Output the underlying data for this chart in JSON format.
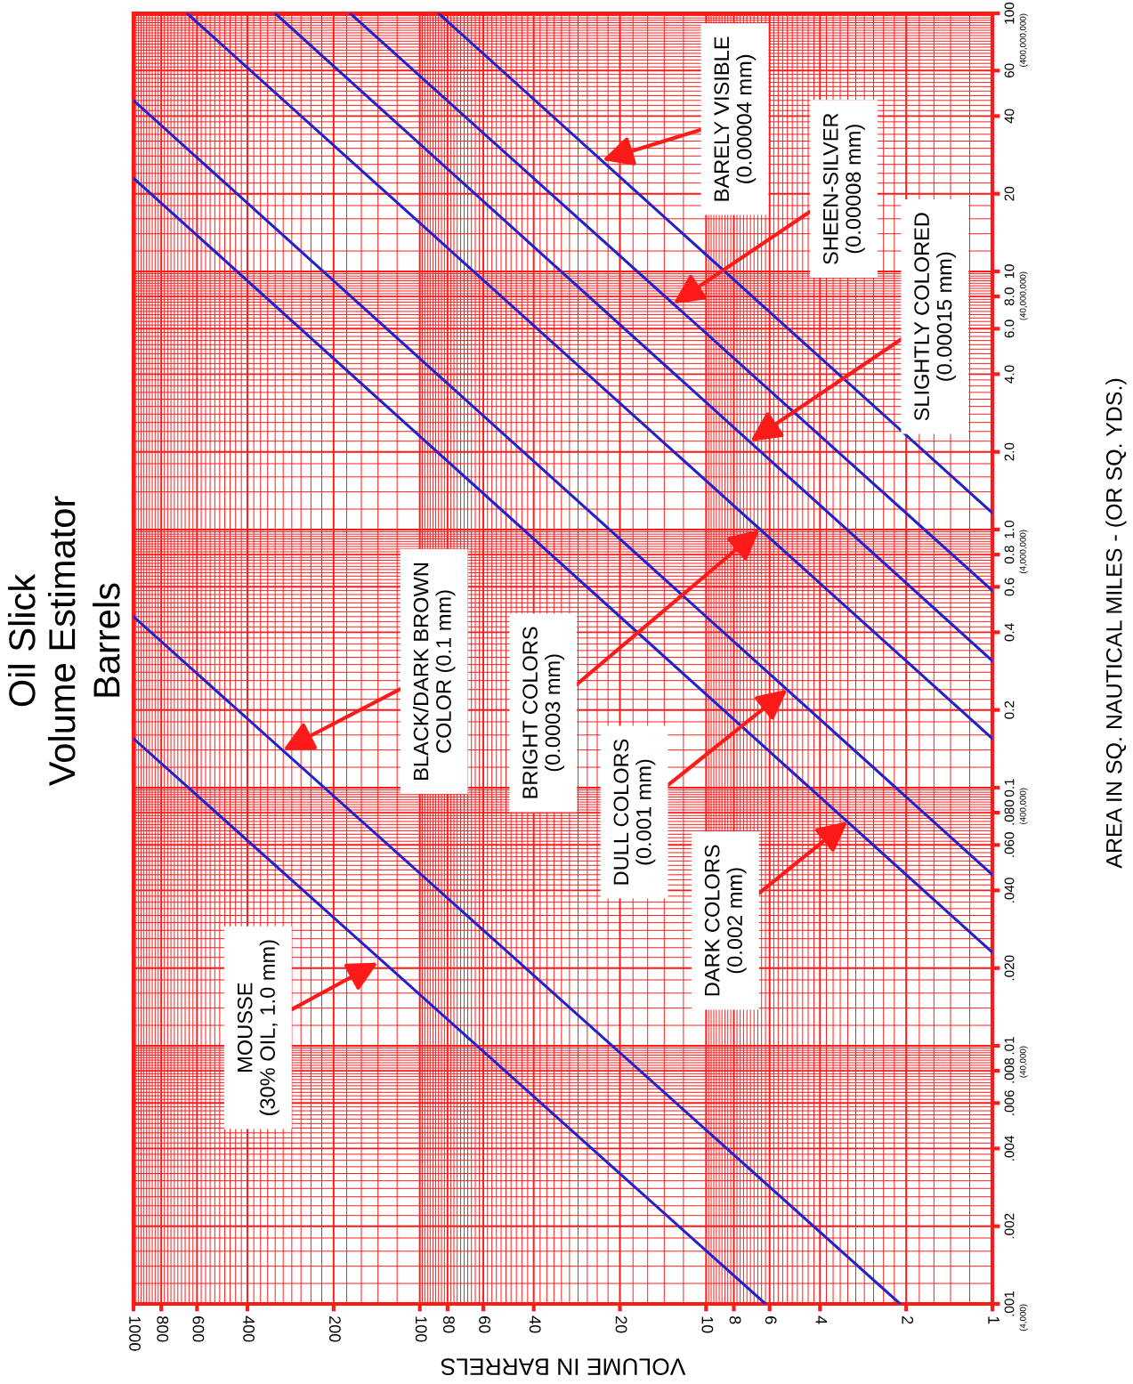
{
  "chart_data": {
    "type": "line",
    "title": "Oil Slick\nVolume Estimator",
    "subtitle": "Barrels",
    "xlabel": "VOLUME IN BARRELS",
    "ylabel": "AREA IN SQ. NAUTICAL MILES - (OR SQ. YDS.)",
    "log": "xy",
    "grid": true,
    "xlim": [
      1000,
      1
    ],
    "ylim": [
      0.001,
      100
    ],
    "xticks": [
      1000,
      800,
      600,
      400,
      200,
      100,
      80,
      60,
      40,
      20,
      10,
      8,
      6,
      4,
      2,
      1
    ],
    "yticks": [
      {
        "value": 0.001,
        "label": ".001"
      },
      {
        "value": 0.002,
        "label": ".002"
      },
      {
        "value": 0.004,
        "label": ".004"
      },
      {
        "value": 0.006,
        "label": ".006"
      },
      {
        "value": 0.008,
        "label": ".008"
      },
      {
        "value": 0.01,
        "label": ".01"
      },
      {
        "value": 0.02,
        "label": ".020"
      },
      {
        "value": 0.04,
        "label": ".040"
      },
      {
        "value": 0.06,
        "label": ".060"
      },
      {
        "value": 0.08,
        "label": ".080"
      },
      {
        "value": 0.1,
        "label": "0.1"
      },
      {
        "value": 0.2,
        "label": "0.2"
      },
      {
        "value": 0.4,
        "label": "0.4"
      },
      {
        "value": 0.6,
        "label": "0.6"
      },
      {
        "value": 0.8,
        "label": "0.8"
      },
      {
        "value": 1,
        "label": "1.0"
      },
      {
        "value": 2,
        "label": "2.0"
      },
      {
        "value": 4,
        "label": "4.0"
      },
      {
        "value": 6,
        "label": "6.0"
      },
      {
        "value": 8,
        "label": "8.0"
      },
      {
        "value": 10,
        "label": "10"
      },
      {
        "value": 20,
        "label": "20"
      },
      {
        "value": 40,
        "label": "40"
      },
      {
        "value": 60,
        "label": "60"
      },
      {
        "value": 100,
        "label": "100"
      }
    ],
    "series": [
      {
        "color": "#2222cc",
        "x": [
          6.2,
          1000
        ],
        "values": [
          0.001,
          0.155
        ]
      },
      {
        "color": "#2222cc",
        "x": [
          2.1,
          1000
        ],
        "values": [
          0.001,
          0.46
        ]
      },
      {
        "color": "#2222cc",
        "x": [
          1,
          1000
        ],
        "values": [
          0.023,
          23
        ]
      },
      {
        "color": "#2222cc",
        "x": [
          1,
          1000
        ],
        "values": [
          0.046,
          46
        ]
      },
      {
        "color": "#2222cc",
        "x": [
          1,
          650
        ],
        "values": [
          0.155,
          100
        ]
      },
      {
        "color": "#2222cc",
        "x": [
          1,
          320
        ],
        "values": [
          0.31,
          100
        ]
      },
      {
        "color": "#2222cc",
        "x": [
          1,
          175
        ],
        "values": [
          0.58,
          100
        ]
      },
      {
        "color": "#2222cc",
        "x": [
          1,
          86
        ],
        "values": [
          1.16,
          100
        ]
      }
    ],
    "annotations": [
      {
        "text": "MOUSSE\n(30% OIL, 1.0 mm)",
        "x": 140,
        "y": 0.021
      },
      {
        "text": "BLACK/DARK BROWN\nCOLOR (0.1 mm)",
        "x": 300,
        "y": 0.14
      },
      {
        "text": "BRIGHT COLORS\n(0.0003 mm)",
        "x": 6.5,
        "y": 1.0
      },
      {
        "text": "DULL COLORS\n(0.001 mm)",
        "x": 5.2,
        "y": 0.24
      },
      {
        "text": "DARK COLORS\n(0.002 mm)",
        "x": 3.2,
        "y": 0.074
      },
      {
        "text": "SLIGHTLY COLORED\n(0.00015 mm)",
        "x": 7,
        "y": 2.2
      },
      {
        "text": "SHEEN-SILVER\n(0.00008 mm)",
        "x": 13,
        "y": 7.5
      },
      {
        "text": "BARELY VISIBLE\n(0.00004 mm)",
        "x": 23,
        "y": 27
      },
      "(4,000)",
      "(40,000)",
      "(400,000)",
      "(4,000,000)",
      "(40,000,000)",
      "(400,000,000)"
    ]
  }
}
